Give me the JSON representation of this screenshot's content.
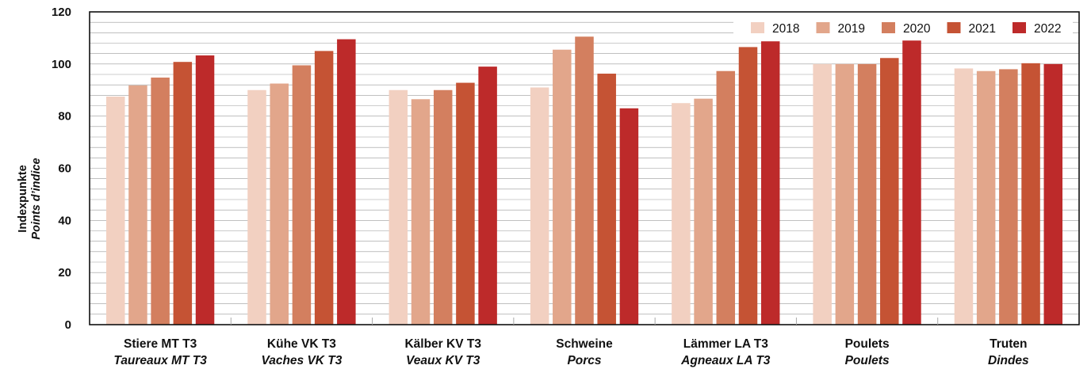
{
  "chart_data": {
    "type": "bar",
    "ylabel": "Indexpunkte",
    "ylabel_sub": "Points d’indice",
    "ylim": [
      0,
      120
    ],
    "yticks": [
      0,
      20,
      40,
      60,
      80,
      100,
      120
    ],
    "grid": true,
    "legend_position": "top-right",
    "categories": [
      {
        "label": "Stiere MT T3",
        "sub": "Taureaux MT T3"
      },
      {
        "label": "Kühe VK T3",
        "sub": "Vaches VK T3"
      },
      {
        "label": "Kälber KV T3",
        "sub": "Veaux  KV T3"
      },
      {
        "label": "Schweine",
        "sub": "Porcs"
      },
      {
        "label": "Lämmer LA T3",
        "sub": "Agneaux LA T3"
      },
      {
        "label": "Poulets",
        "sub": "Poulets"
      },
      {
        "label": "Truten",
        "sub": "Dindes"
      }
    ],
    "series": [
      {
        "name": "2018",
        "color": "#f2d0c1",
        "values": [
          87.5,
          90,
          90,
          91,
          85,
          100,
          98.3
        ]
      },
      {
        "name": "2019",
        "color": "#e2a68b",
        "values": [
          91.8,
          92.5,
          86.5,
          105.5,
          86.7,
          100,
          97.3
        ]
      },
      {
        "name": "2020",
        "color": "#d37f5f",
        "values": [
          94.8,
          99.5,
          90,
          110.5,
          97.3,
          100,
          98
        ]
      },
      {
        "name": "2021",
        "color": "#c55334",
        "values": [
          100.8,
          105,
          92.8,
          96.3,
          106.5,
          102.3,
          100.3
        ]
      },
      {
        "name": "2022",
        "color": "#bd2a2a",
        "values": [
          103.3,
          109.5,
          99,
          83,
          108.7,
          109,
          100
        ]
      }
    ]
  }
}
